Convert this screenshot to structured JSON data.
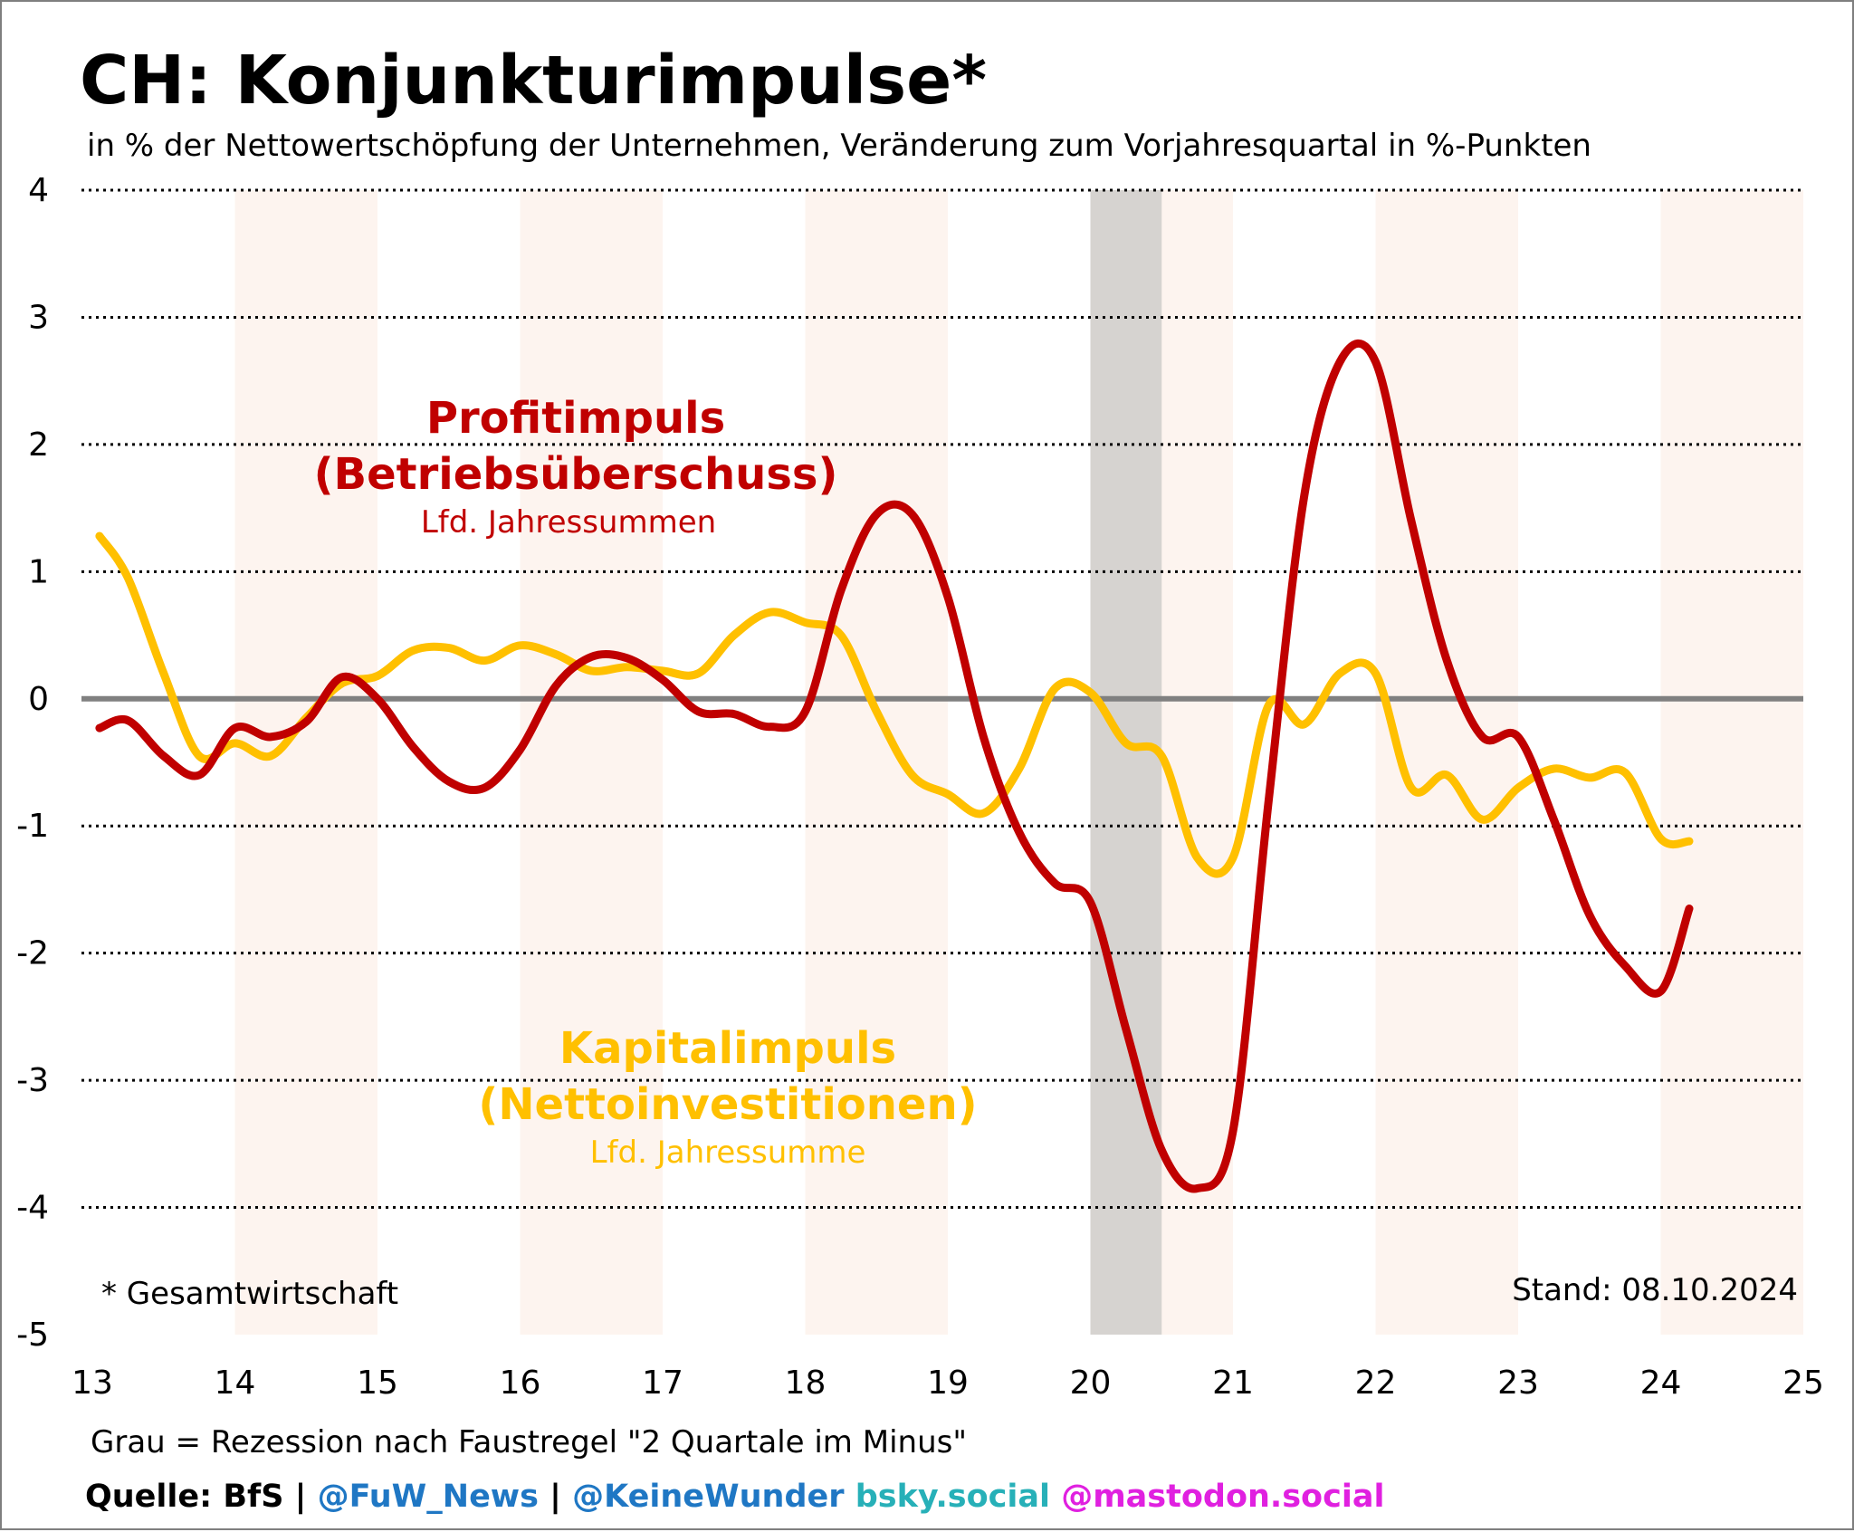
{
  "title": "CH: Konjunkturimpulse*",
  "subtitle": "in % der Nettowertschöpfung der Unternehmen, Veränderung zum Vorjahresquartal in %-Punkten",
  "footnote": "* Gesamtwirtschaft",
  "stand": "Stand: 08.10.2024",
  "recession_note": "Grau = Rezession nach Faustregel \"2 Quartale im Minus\"",
  "source": {
    "quelle": "Quelle: BfS",
    "sep": " | ",
    "fuw": "@FuW_News",
    "keine": "@KeineWunder",
    "bsky": " bsky.social",
    "mastodon": " @mastodon.social"
  },
  "colors": {
    "profit": "#c00000",
    "kapital": "#ffc000",
    "zero_line": "#808080",
    "recession": "#d6d3d0",
    "band": "#fdf4ef",
    "grid": "#000000",
    "fuw": "#1f77c4",
    "bsky": "#27b0b8",
    "mastodon": "#e020e0"
  },
  "chart_data": {
    "type": "line",
    "xlim": [
      13,
      25
    ],
    "ylim": [
      -5,
      4
    ],
    "x_ticks": [
      "13",
      "14",
      "15",
      "16",
      "17",
      "18",
      "19",
      "20",
      "21",
      "22",
      "23",
      "24",
      "25"
    ],
    "y_ticks": [
      "4",
      "3",
      "2",
      "1",
      "0",
      "-1",
      "-2",
      "-3",
      "-4",
      "-5"
    ],
    "grid": "dotted horizontal",
    "shaded_years": [
      14,
      16,
      18,
      20,
      22,
      24
    ],
    "recession": [
      20.0,
      20.5
    ],
    "series": [
      {
        "name": "Profitimpuls",
        "label_lines": [
          "Profitimpuls",
          "(Betriebsüberschuss)"
        ],
        "sublabel": "Lfd. Jahressummen",
        "color": "#c00000",
        "points": [
          [
            13.05,
            -0.23
          ],
          [
            13.25,
            -0.17
          ],
          [
            13.5,
            -0.45
          ],
          [
            13.75,
            -0.6
          ],
          [
            14.0,
            -0.23
          ],
          [
            14.25,
            -0.3
          ],
          [
            14.5,
            -0.18
          ],
          [
            14.75,
            0.17
          ],
          [
            15.0,
            0.0
          ],
          [
            15.25,
            -0.38
          ],
          [
            15.5,
            -0.65
          ],
          [
            15.75,
            -0.7
          ],
          [
            16.0,
            -0.4
          ],
          [
            16.25,
            0.1
          ],
          [
            16.5,
            0.33
          ],
          [
            16.75,
            0.32
          ],
          [
            17.0,
            0.15
          ],
          [
            17.25,
            -0.1
          ],
          [
            17.5,
            -0.12
          ],
          [
            17.75,
            -0.22
          ],
          [
            18.0,
            -0.1
          ],
          [
            18.25,
            0.85
          ],
          [
            18.5,
            1.45
          ],
          [
            18.75,
            1.45
          ],
          [
            19.0,
            0.8
          ],
          [
            19.25,
            -0.3
          ],
          [
            19.5,
            -1.05
          ],
          [
            19.75,
            -1.45
          ],
          [
            20.0,
            -1.6
          ],
          [
            20.25,
            -2.6
          ],
          [
            20.5,
            -3.55
          ],
          [
            20.75,
            -3.85
          ],
          [
            21.0,
            -3.4
          ],
          [
            21.25,
            -0.8
          ],
          [
            21.5,
            1.6
          ],
          [
            21.75,
            2.65
          ],
          [
            22.0,
            2.65
          ],
          [
            22.25,
            1.4
          ],
          [
            22.5,
            0.3
          ],
          [
            22.75,
            -0.3
          ],
          [
            23.0,
            -0.3
          ],
          [
            23.25,
            -0.95
          ],
          [
            23.5,
            -1.7
          ],
          [
            23.75,
            -2.1
          ],
          [
            24.0,
            -2.3
          ],
          [
            24.2,
            -1.65
          ]
        ]
      },
      {
        "name": "Kapitalimpuls",
        "label_lines": [
          "Kapitalimpuls",
          "(Nettoinvestitionen)"
        ],
        "sublabel": "Lfd. Jahressumme",
        "color": "#ffc000",
        "points": [
          [
            13.05,
            1.28
          ],
          [
            13.25,
            0.95
          ],
          [
            13.5,
            0.2
          ],
          [
            13.75,
            -0.45
          ],
          [
            14.0,
            -0.35
          ],
          [
            14.25,
            -0.45
          ],
          [
            14.5,
            -0.15
          ],
          [
            14.75,
            0.12
          ],
          [
            15.0,
            0.18
          ],
          [
            15.25,
            0.38
          ],
          [
            15.5,
            0.4
          ],
          [
            15.75,
            0.3
          ],
          [
            16.0,
            0.42
          ],
          [
            16.25,
            0.35
          ],
          [
            16.5,
            0.22
          ],
          [
            16.75,
            0.25
          ],
          [
            17.0,
            0.22
          ],
          [
            17.25,
            0.2
          ],
          [
            17.5,
            0.5
          ],
          [
            17.75,
            0.68
          ],
          [
            18.0,
            0.6
          ],
          [
            18.25,
            0.5
          ],
          [
            18.5,
            -0.1
          ],
          [
            18.75,
            -0.6
          ],
          [
            19.0,
            -0.75
          ],
          [
            19.25,
            -0.9
          ],
          [
            19.5,
            -0.55
          ],
          [
            19.75,
            0.08
          ],
          [
            20.0,
            0.05
          ],
          [
            20.25,
            -0.35
          ],
          [
            20.5,
            -0.45
          ],
          [
            20.75,
            -1.25
          ],
          [
            21.0,
            -1.25
          ],
          [
            21.25,
            -0.05
          ],
          [
            21.5,
            -0.2
          ],
          [
            21.75,
            0.2
          ],
          [
            22.0,
            0.2
          ],
          [
            22.25,
            -0.7
          ],
          [
            22.5,
            -0.6
          ],
          [
            22.75,
            -0.95
          ],
          [
            23.0,
            -0.7
          ],
          [
            23.25,
            -0.55
          ],
          [
            23.5,
            -0.62
          ],
          [
            23.75,
            -0.58
          ],
          [
            24.0,
            -1.1
          ],
          [
            24.2,
            -1.12
          ]
        ]
      }
    ]
  }
}
